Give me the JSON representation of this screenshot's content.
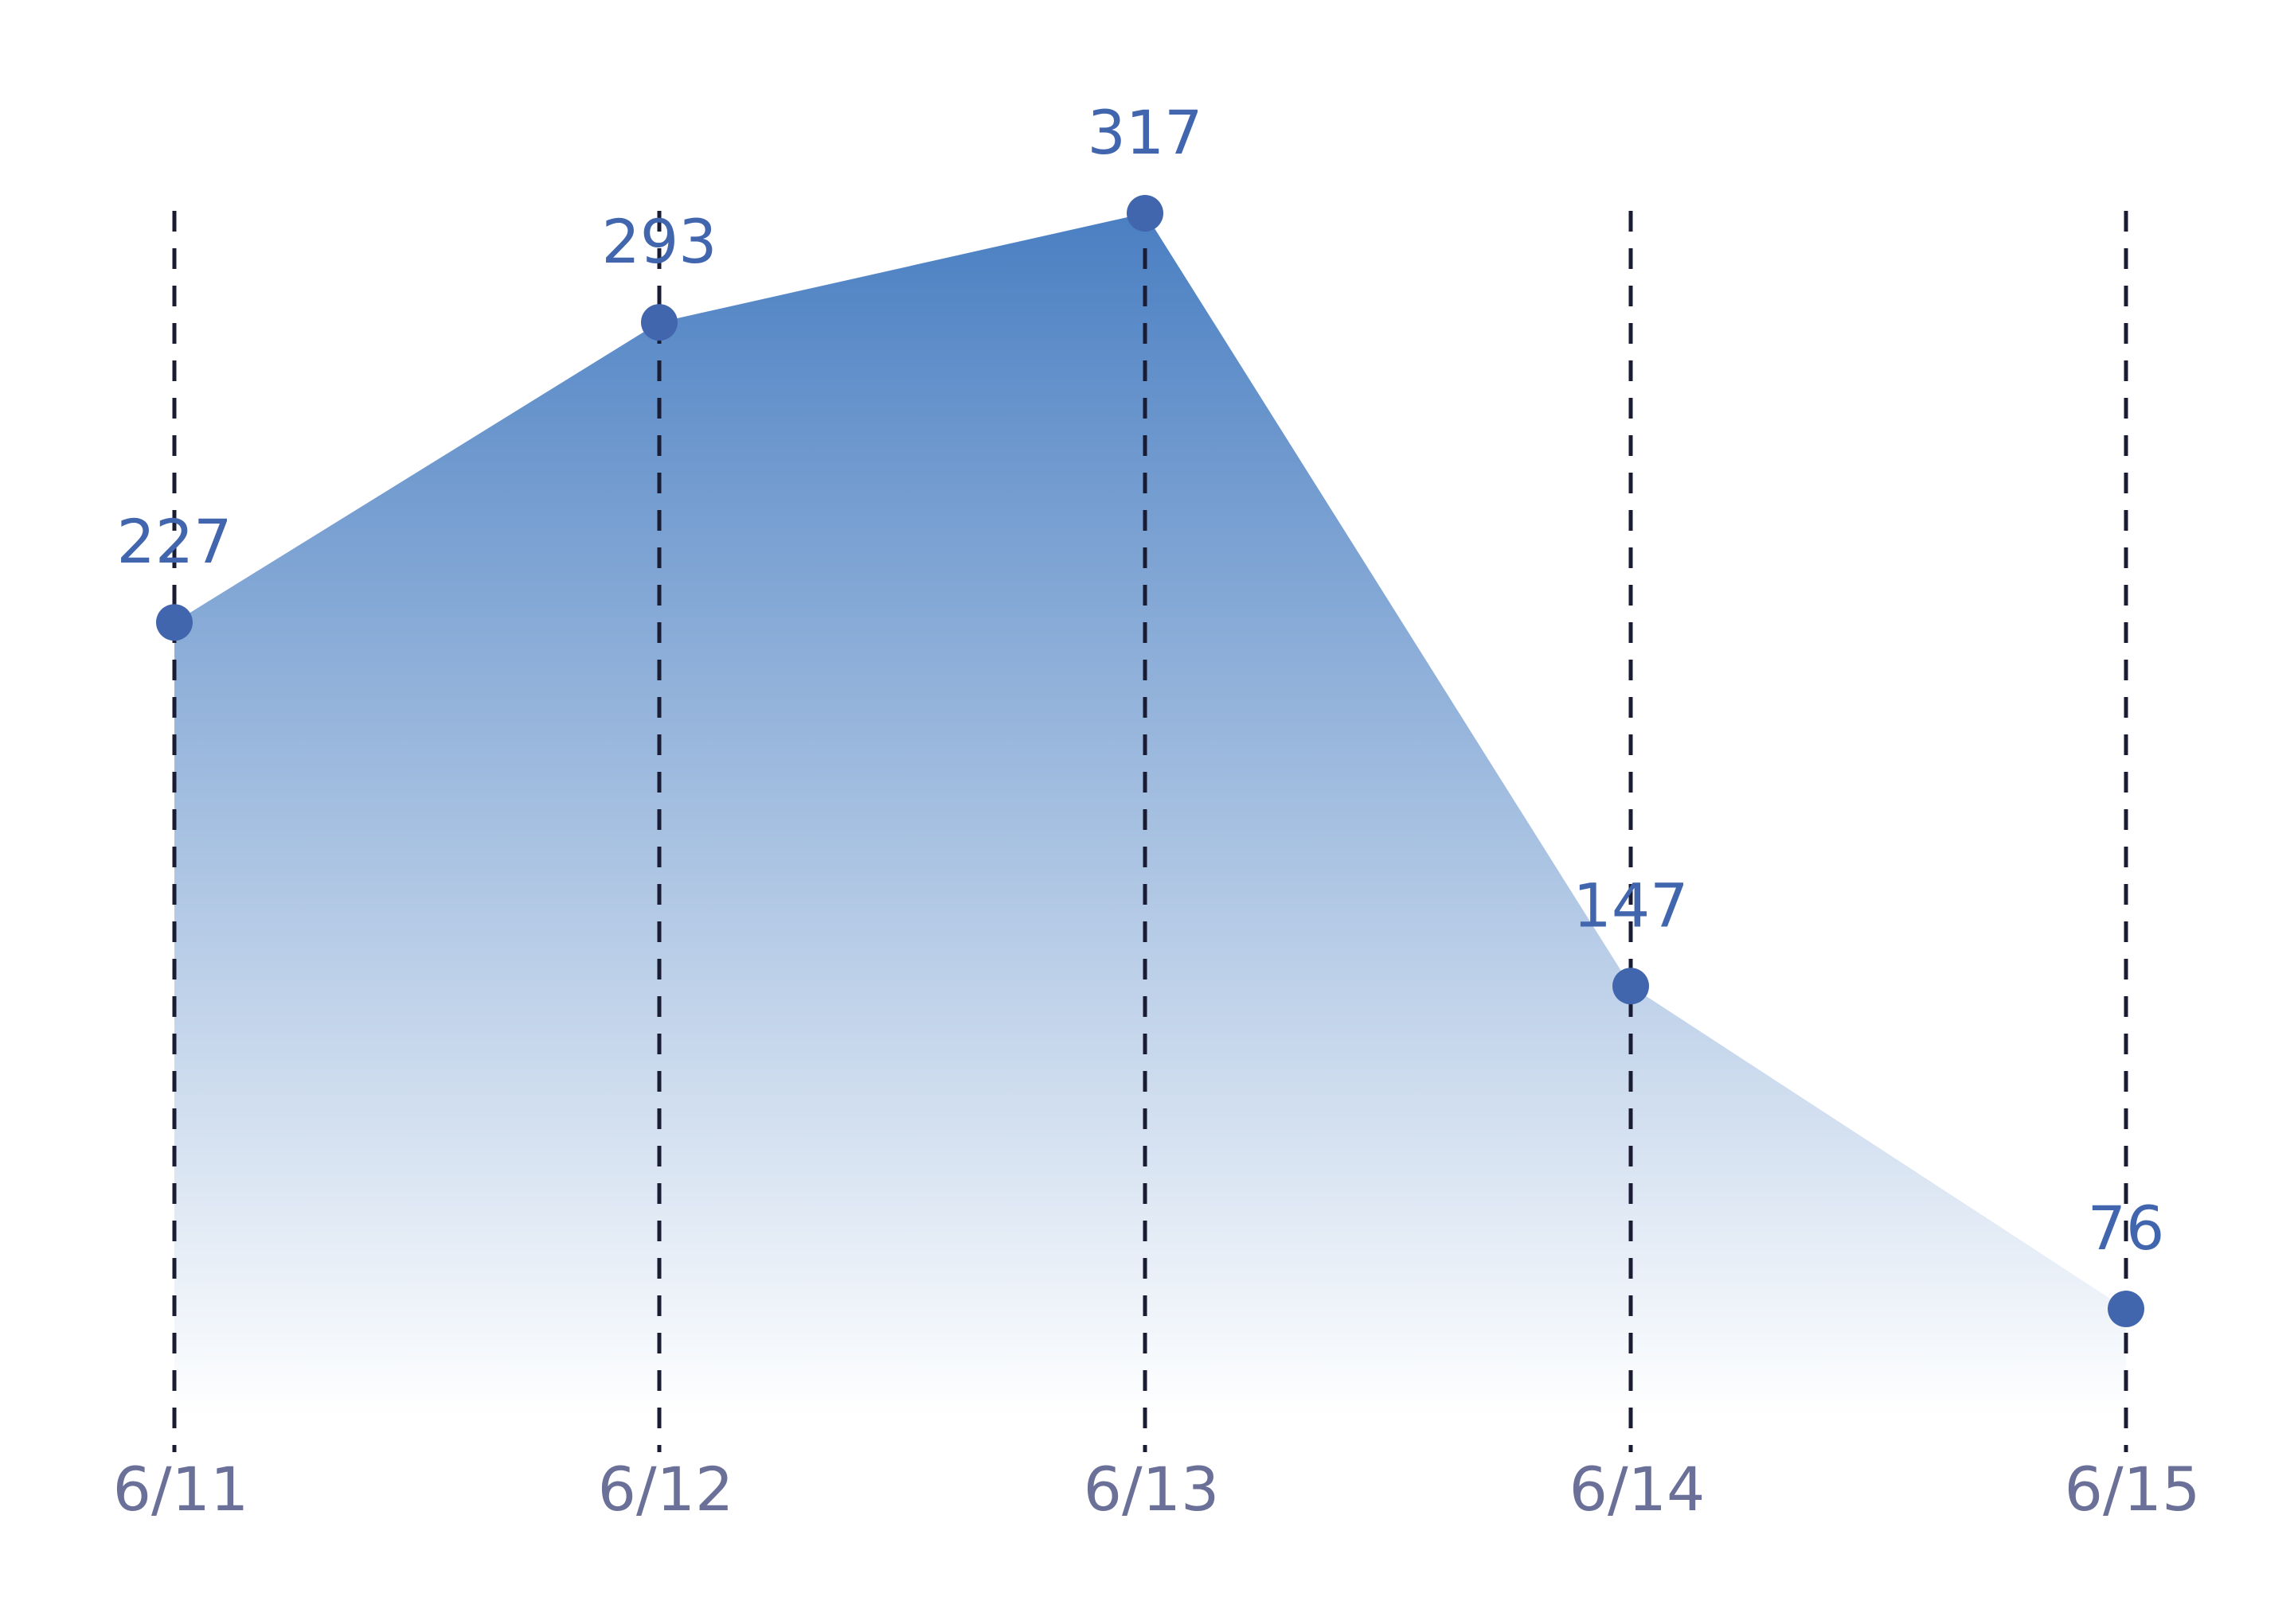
{
  "chart_data": {
    "type": "area",
    "categories": [
      "6/11",
      "6/12",
      "6/13",
      "6/14",
      "6/15"
    ],
    "values": [
      227,
      293,
      317,
      147,
      76
    ],
    "title": "",
    "xlabel": "",
    "ylabel": "",
    "ylim": [
      0,
      317
    ],
    "grid": "vertical dashed lines at each category",
    "data_labels": true,
    "legend": "none",
    "colors": {
      "series": "#4166ae",
      "area_top": "#4a7fc2",
      "area_bottom": "#ffffff",
      "gridline": "#1a1c33",
      "tick_label": "#6a7098"
    }
  }
}
